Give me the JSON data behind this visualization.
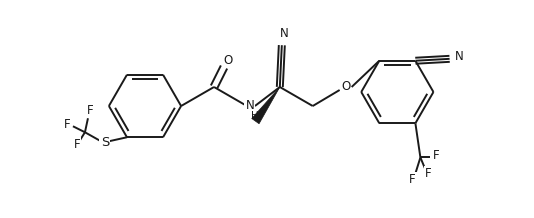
{
  "background_color": "#ffffff",
  "line_color": "#1a1a1a",
  "line_width": 1.4,
  "font_size": 8.5,
  "figsize": [
    5.34,
    2.18
  ],
  "dpi": 100,
  "xlim": [
    0,
    534
  ],
  "ylim": [
    0,
    218
  ]
}
